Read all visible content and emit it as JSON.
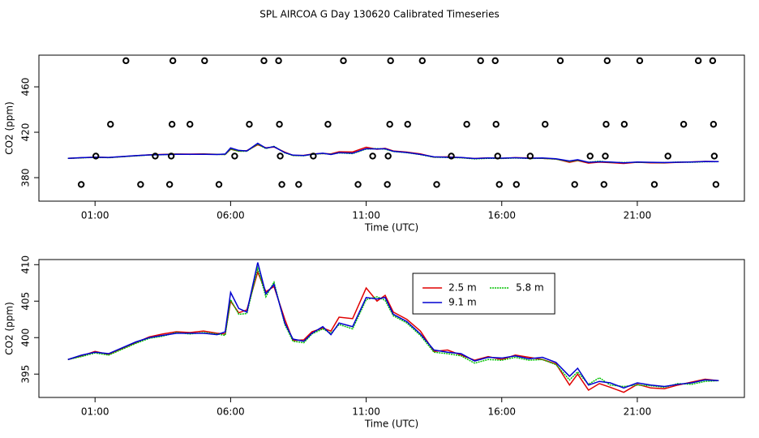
{
  "chart_data": [
    {
      "type": "line",
      "title": "SPL AIRCOA G  Day 130620  Calibrated Timeseries",
      "xlabel": "Time (UTC)",
      "ylabel": "CO2 (ppm)",
      "xlim": [
        -1.07,
        24.95
      ],
      "ylim": [
        359.3,
        487.9
      ],
      "xticks": [
        {
          "value": 1,
          "label": "01:00"
        },
        {
          "value": 6,
          "label": "06:00"
        },
        {
          "value": 11,
          "label": "11:00"
        },
        {
          "value": 16,
          "label": "16:00"
        },
        {
          "value": 21,
          "label": "21:00"
        }
      ],
      "yticks": [
        380,
        420,
        460
      ],
      "x": [
        0,
        0.5,
        1,
        1.5,
        2,
        2.5,
        3,
        3.5,
        4,
        4.5,
        5,
        5.5,
        5.8,
        6,
        6.3,
        6.6,
        7,
        7.3,
        7.6,
        8,
        8.3,
        8.7,
        9,
        9.4,
        9.7,
        10,
        10.5,
        11,
        11.4,
        11.7,
        12,
        12.5,
        13,
        13.5,
        14,
        14.5,
        15,
        15.5,
        16,
        16.5,
        17,
        17.5,
        18,
        18.5,
        18.8,
        19.2,
        19.6,
        20,
        20.5,
        21,
        21.5,
        22,
        22.5,
        23,
        23.5,
        24
      ],
      "series": [
        {
          "color": "#e00000",
          "values": [
            397.0,
            397.5,
            398.1,
            397.7,
            398.5,
            399.3,
            400.1,
            400.5,
            400.8,
            400.7,
            400.9,
            400.6,
            400.5,
            405.0,
            403.4,
            403.8,
            409.0,
            406.3,
            407.0,
            402.5,
            399.6,
            399.7,
            400.8,
            401.3,
            400.9,
            402.8,
            402.6,
            406.8,
            405.0,
            405.8,
            403.5,
            402.5,
            400.9,
            398.1,
            398.3,
            397.6,
            396.9,
            397.4,
            397.0,
            397.6,
            397.3,
            397.0,
            396.4,
            393.5,
            395.0,
            392.8,
            393.7,
            393.2,
            392.5,
            393.6,
            393.1,
            393.0,
            393.5,
            393.9,
            394.3,
            394.1
          ]
        },
        {
          "color": "#00c000",
          "linestyle": "dotted",
          "values": [
            397.0,
            397.4,
            397.9,
            397.6,
            398.4,
            399.2,
            399.9,
            400.2,
            400.7,
            400.5,
            400.7,
            400.5,
            400.3,
            405.2,
            403.2,
            403.3,
            409.5,
            405.6,
            407.6,
            401.8,
            399.5,
            399.3,
            400.5,
            401.2,
            400.6,
            401.8,
            401.2,
            405.2,
            405.6,
            405.1,
            403.0,
            402.0,
            400.3,
            398.0,
            397.8,
            397.5,
            396.5,
            397.0,
            396.9,
            397.3,
            396.9,
            397.0,
            396.3,
            394.2,
            395.3,
            393.6,
            394.5,
            393.5,
            393.3,
            393.5,
            393.4,
            393.2,
            393.7,
            393.6,
            394.0,
            394.1
          ]
        },
        {
          "color": "#0000d0",
          "values": [
            397.0,
            397.6,
            398.0,
            397.8,
            398.6,
            399.4,
            400.0,
            400.3,
            400.6,
            400.6,
            400.6,
            400.4,
            400.8,
            406.2,
            404.0,
            403.5,
            410.3,
            406.0,
            407.3,
            402.0,
            399.8,
            399.5,
            400.6,
            401.5,
            400.4,
            402.0,
            401.5,
            405.5,
            405.3,
            405.5,
            403.2,
            402.2,
            400.5,
            398.3,
            398.0,
            397.8,
            396.8,
            397.3,
            397.2,
            397.5,
            397.1,
            397.3,
            396.6,
            394.7,
            395.8,
            393.5,
            394.0,
            393.8,
            393.1,
            393.8,
            393.5,
            393.3,
            393.6,
            393.8,
            394.2,
            394.1
          ]
        }
      ],
      "points": {
        "color": "#000000",
        "x": [
          2.14,
          3.87,
          5.04,
          7.23,
          7.77,
          10.16,
          11.9,
          13.07,
          15.22,
          15.76,
          18.16,
          19.89,
          21.09,
          23.25,
          23.78,
          1.57,
          3.84,
          4.5,
          6.69,
          7.8,
          9.59,
          11.87,
          12.53,
          14.71,
          15.79,
          17.6,
          19.85,
          20.52,
          22.71,
          23.81,
          1.03,
          3.22,
          3.81,
          6.15,
          7.83,
          9.05,
          11.24,
          11.81,
          14.14,
          15.85,
          17.05,
          19.26,
          19.82,
          22.13,
          23.84,
          0.49,
          2.68,
          3.75,
          5.57,
          7.89,
          8.51,
          10.7,
          11.78,
          13.6,
          15.91,
          16.54,
          18.69,
          19.77,
          21.63,
          23.9
        ],
        "values": [
          483,
          483,
          483,
          483,
          483,
          483,
          483,
          483,
          483,
          483,
          483,
          483,
          483,
          483,
          483,
          427,
          427,
          427,
          427,
          427,
          427,
          427,
          427,
          427,
          427,
          427,
          427,
          427,
          427,
          427,
          399,
          399,
          399,
          399,
          399,
          399,
          399,
          399,
          399,
          399,
          399,
          399,
          399,
          399,
          399,
          374,
          374,
          374,
          374,
          374,
          374,
          374,
          374,
          374,
          374,
          374,
          374,
          374,
          374,
          374
        ]
      }
    },
    {
      "type": "line",
      "xlabel": "Time (UTC)",
      "ylabel": "CO2 (ppm)",
      "xlim": [
        -1.07,
        24.95
      ],
      "ylim": [
        391.8,
        410.7
      ],
      "xticks": [
        {
          "value": 1,
          "label": "01:00"
        },
        {
          "value": 6,
          "label": "06:00"
        },
        {
          "value": 11,
          "label": "11:00"
        },
        {
          "value": 16,
          "label": "16:00"
        },
        {
          "value": 21,
          "label": "21:00"
        }
      ],
      "yticks": [
        395,
        400,
        405,
        410
      ],
      "legend": "top",
      "x": [
        0,
        0.5,
        1,
        1.5,
        2,
        2.5,
        3,
        3.5,
        4,
        4.5,
        5,
        5.5,
        5.8,
        6,
        6.3,
        6.6,
        7,
        7.3,
        7.6,
        8,
        8.3,
        8.7,
        9,
        9.4,
        9.7,
        10,
        10.5,
        11,
        11.4,
        11.7,
        12,
        12.5,
        13,
        13.5,
        14,
        14.5,
        15,
        15.5,
        16,
        16.5,
        17,
        17.5,
        18,
        18.5,
        18.8,
        19.2,
        19.6,
        20,
        20.5,
        21,
        21.5,
        22,
        22.5,
        23,
        23.5,
        24
      ],
      "series": [
        {
          "name": "2.5 m",
          "color": "#e00000",
          "values": [
            397.0,
            397.5,
            398.1,
            397.7,
            398.5,
            399.3,
            400.1,
            400.5,
            400.8,
            400.7,
            400.9,
            400.6,
            400.5,
            405.0,
            403.4,
            403.8,
            409.0,
            406.3,
            407.0,
            402.5,
            399.6,
            399.7,
            400.8,
            401.3,
            400.9,
            402.8,
            402.6,
            406.8,
            405.0,
            405.8,
            403.5,
            402.5,
            400.9,
            398.1,
            398.3,
            397.6,
            396.9,
            397.4,
            397.0,
            397.6,
            397.3,
            397.0,
            396.4,
            393.5,
            395.0,
            392.8,
            393.7,
            393.2,
            392.5,
            393.6,
            393.1,
            393.0,
            393.5,
            393.9,
            394.3,
            394.1
          ]
        },
        {
          "name": "5.8 m",
          "color": "#00c000",
          "linestyle": "dotted",
          "values": [
            397.0,
            397.4,
            397.9,
            397.6,
            398.4,
            399.2,
            399.9,
            400.2,
            400.7,
            400.5,
            400.7,
            400.5,
            400.3,
            405.2,
            403.2,
            403.3,
            409.5,
            405.6,
            407.6,
            401.8,
            399.5,
            399.3,
            400.5,
            401.2,
            400.6,
            401.8,
            401.2,
            405.2,
            405.6,
            405.1,
            403.0,
            402.0,
            400.3,
            398.0,
            397.8,
            397.5,
            396.5,
            397.0,
            396.9,
            397.3,
            396.9,
            397.0,
            396.3,
            394.2,
            395.3,
            393.6,
            394.5,
            393.5,
            393.3,
            393.5,
            393.4,
            393.2,
            393.7,
            393.6,
            394.0,
            394.1
          ]
        },
        {
          "name": "9.1 m",
          "color": "#0000d0",
          "values": [
            397.0,
            397.6,
            398.0,
            397.8,
            398.6,
            399.4,
            400.0,
            400.3,
            400.6,
            400.6,
            400.6,
            400.4,
            400.8,
            406.2,
            404.0,
            403.5,
            410.3,
            406.0,
            407.3,
            402.0,
            399.8,
            399.5,
            400.6,
            401.5,
            400.4,
            402.0,
            401.5,
            405.5,
            405.3,
            405.5,
            403.2,
            402.2,
            400.5,
            398.3,
            398.0,
            397.8,
            396.8,
            397.3,
            397.2,
            397.5,
            397.1,
            397.3,
            396.6,
            394.7,
            395.8,
            393.5,
            394.0,
            393.8,
            393.1,
            393.8,
            393.5,
            393.3,
            393.6,
            393.8,
            394.2,
            394.1
          ]
        }
      ]
    }
  ]
}
